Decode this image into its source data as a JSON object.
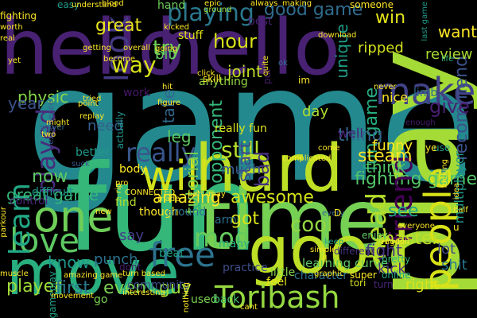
{
  "words": [
    {
      "text": "game",
      "color": "#23898e"
    },
    {
      "text": "fun",
      "color": "#35b779"
    },
    {
      "text": "hello",
      "color": "#482173"
    },
    {
      "text": "hello",
      "color": "#482173"
    },
    {
      "text": "play",
      "color": "#a5db36"
    },
    {
      "text": "time",
      "color": "#75d054"
    },
    {
      "text": "hard",
      "color": "#bddf26"
    },
    {
      "text": "move",
      "color": "#29af7f"
    },
    {
      "text": "good",
      "color": "#bddf26"
    },
    {
      "text": "will",
      "color": "#d2e21b"
    },
    {
      "text": "make",
      "color": "#414287"
    },
    {
      "text": "people",
      "color": "#d8e219"
    },
    {
      "text": "one",
      "color": "#6ece58"
    },
    {
      "text": "look",
      "color": "#443983"
    },
    {
      "text": "free",
      "color": "#2c738e"
    },
    {
      "text": "love",
      "color": "#5ec962"
    },
    {
      "text": "Toribash",
      "color": "#95d840"
    },
    {
      "text": "playing",
      "color": "#2a788e"
    },
    {
      "text": "good game",
      "color": "#2f6c8e"
    },
    {
      "text": "hour",
      "color": "#d8e219"
    },
    {
      "text": "learn",
      "color": "#22a785"
    },
    {
      "text": "played",
      "color": "#472d7b"
    },
    {
      "text": "mod",
      "color": "#65cb5e"
    },
    {
      "text": "really",
      "color": "#39568c"
    },
    {
      "text": "fighting game",
      "color": "#52c569"
    },
    {
      "text": "friend",
      "color": "#440154"
    },
    {
      "text": "head",
      "color": "#b5de2b"
    },
    {
      "text": "still",
      "color": "#b5de2b"
    },
    {
      "text": "fun game",
      "color": "#26ad81"
    },
    {
      "text": "great game",
      "color": "#35b779"
    },
    {
      "text": "recommend",
      "color": "#3b528b"
    },
    {
      "text": "amazing",
      "color": "#fde725"
    },
    {
      "text": "know",
      "color": "#1f988b"
    },
    {
      "text": "control",
      "color": "#482878"
    },
    {
      "text": "steam",
      "color": "#fde725"
    },
    {
      "text": "awesome",
      "color": "#d2e21b"
    },
    {
      "text": "cool",
      "color": "#93d741"
    },
    {
      "text": "great",
      "color": "#ece51b"
    },
    {
      "text": "physic",
      "color": "#86d549"
    },
    {
      "text": "opponent",
      "color": "#35b779"
    },
    {
      "text": "try",
      "color": "#6ece58"
    },
    {
      "text": "way",
      "color": "#d8e219"
    },
    {
      "text": "joint",
      "color": "#c2df23"
    },
    {
      "text": "give",
      "color": "#481f70"
    },
    {
      "text": "thing",
      "color": "#31688e"
    },
    {
      "text": "player",
      "color": "#a0da39"
    },
    {
      "text": "even",
      "color": "#7ad151"
    },
    {
      "text": "first",
      "color": "#2a788e"
    },
    {
      "text": "guy",
      "color": "#9bd93c"
    },
    {
      "text": "tutorial",
      "color": "#7ad151"
    },
    {
      "text": "start",
      "color": "#3e4989"
    },
    {
      "text": "bad",
      "color": "#46337e"
    },
    {
      "text": "got",
      "color": "#d8e219"
    },
    {
      "text": "see",
      "color": "#22a785"
    },
    {
      "text": "master",
      "color": "#bddf26"
    },
    {
      "text": "fight",
      "color": "#46327e"
    },
    {
      "text": "think",
      "color": "#52c569"
    },
    {
      "text": "year",
      "color": "#3b528b"
    },
    {
      "text": "learning curve",
      "color": "#5ec962"
    },
    {
      "text": "lot",
      "color": "#3e4989"
    },
    {
      "text": "day",
      "color": "#addc30"
    },
    {
      "text": "want",
      "color": "#fde725"
    },
    {
      "text": "review",
      "color": "#a8db34"
    },
    {
      "text": "win",
      "color": "#e5e419"
    },
    {
      "text": "ripped",
      "color": "#d0e11c"
    },
    {
      "text": "unique",
      "color": "#1f9e89"
    },
    {
      "text": "much",
      "color": "#365d8d"
    },
    {
      "text": "funny",
      "color": "#fde725"
    },
    {
      "text": "take",
      "color": "#31688e"
    },
    {
      "text": "need",
      "color": "#355f8d"
    },
    {
      "text": "now",
      "color": "#5ec962"
    },
    {
      "text": "leg",
      "color": "#5ec962"
    },
    {
      "text": "bit",
      "color": "#5ec962"
    },
    {
      "text": "say",
      "color": "#433e85"
    },
    {
      "text": "punch",
      "color": "#2c738e"
    },
    {
      "text": "beat",
      "color": "#1fa187"
    },
    {
      "text": "mod",
      "color": "#65cb5e"
    },
    {
      "text": "kick",
      "color": "#46327e"
    },
    {
      "text": "right",
      "color": "#dde318"
    },
    {
      "text": "shit",
      "color": "#2a788e"
    },
    {
      "text": "community",
      "color": "#3b528b"
    },
    {
      "text": "used",
      "color": "#7ad151"
    },
    {
      "text": "back",
      "color": "#4ac16d"
    },
    {
      "text": "difficult",
      "color": "#1f948c"
    },
    {
      "text": "tori",
      "color": "#d5e21a"
    },
    {
      "text": "online",
      "color": "#22a884"
    },
    {
      "text": "pretty",
      "color": "#35b779"
    },
    {
      "text": "character",
      "color": "#2c728e"
    },
    {
      "text": "really fun",
      "color": "#dde318"
    },
    {
      "text": "multiplayer",
      "color": "#1f9a8a"
    },
    {
      "text": "nice",
      "color": "#fde725"
    },
    {
      "text": "limb",
      "color": "#2f6c8e"
    },
    {
      "text": "enough",
      "color": "#481a6c"
    },
    {
      "text": "practice",
      "color": "#3d4e8a"
    },
    {
      "text": "well",
      "color": "#482475"
    },
    {
      "text": "best",
      "color": "#482173"
    },
    {
      "text": "hand",
      "color": "#6ece58"
    },
    {
      "text": "easy",
      "color": "#1e9b8a"
    },
    {
      "text": "fighting",
      "color": "#fde725"
    },
    {
      "text": "anything",
      "color": "#95d840"
    },
    {
      "text": "stuff",
      "color": "#e2e418"
    },
    {
      "text": "gameplay",
      "color": "#1fa188"
    },
    {
      "text": "muscle",
      "color": "#fde725"
    },
    {
      "text": "body",
      "color": "#fde725"
    },
    {
      "text": "work",
      "color": "#481769"
    },
    {
      "text": "real",
      "color": "#fde725"
    },
    {
      "text": "actually",
      "color": "#1f968b"
    },
    {
      "text": "someone",
      "color": "#fde725"
    },
    {
      "text": "feel",
      "color": "#e7e419"
    },
    {
      "text": "little",
      "color": "#86d549"
    },
    {
      "text": "many",
      "color": "#2ab07f"
    },
    {
      "text": "better",
      "color": "#1f9a8a"
    },
    {
      "text": "suck",
      "color": "#3b528b"
    },
    {
      "text": "server",
      "color": "#31688e"
    },
    {
      "text": "experience",
      "color": "#3a548c"
    },
    {
      "text": "arm",
      "color": "#2d708e"
    },
    {
      "text": "though",
      "color": "#fde725"
    },
    {
      "text": "go",
      "color": "#7ad151"
    },
    {
      "text": "use",
      "color": "#1f9f88"
    },
    {
      "text": "come",
      "color": "#fde725"
    },
    {
      "text": "find",
      "color": "#b5de2b"
    },
    {
      "text": "dont",
      "color": "#48186a"
    },
    {
      "text": "around",
      "color": "#2c728e"
    },
    {
      "text": "simple",
      "color": "#fde725"
    },
    {
      "text": "keep",
      "color": "#22a785"
    },
    {
      "text": "different",
      "color": "#46337e"
    },
    {
      "text": "every",
      "color": "#32648e"
    },
    {
      "text": "enjoy",
      "color": "#5ec962"
    },
    {
      "text": "turn",
      "color": "#482475"
    },
    {
      "text": "graphic",
      "color": "#fde725"
    },
    {
      "text": "super",
      "color": "#fde725"
    },
    {
      "text": "skill",
      "color": "#fde725"
    },
    {
      "text": "ok",
      "color": "#2d708e"
    },
    {
      "text": "im",
      "color": "#fde725"
    },
    {
      "text": "put",
      "color": "#481b6d"
    },
    {
      "text": "epic",
      "color": "#fde725"
    },
    {
      "text": "blood",
      "color": "#fde725"
    },
    {
      "text": "ground",
      "color": "#a0da39"
    },
    {
      "text": "always",
      "color": "#fde725"
    },
    {
      "text": "making",
      "color": "#fde725"
    },
    {
      "text": "download",
      "color": "#fde725"
    },
    {
      "text": "last game",
      "color": "#1f9a8a"
    },
    {
      "text": "life",
      "color": "#35b779"
    },
    {
      "text": "understand",
      "color": "#fde725"
    },
    {
      "text": "worth",
      "color": "#fde725"
    },
    {
      "text": "kicked",
      "color": "#fde725"
    },
    {
      "text": "getting",
      "color": "#fde725"
    },
    {
      "text": "overall",
      "color": "#fde725"
    },
    {
      "text": "going",
      "color": "#fde725"
    },
    {
      "text": "become",
      "color": "#fde725"
    },
    {
      "text": "replay",
      "color": "#fde725"
    },
    {
      "text": "point",
      "color": "#fde725"
    },
    {
      "text": "tried",
      "color": "#fde725"
    },
    {
      "text": "hit",
      "color": "#fde725"
    },
    {
      "text": "figure",
      "color": "#fde725"
    },
    {
      "text": "might",
      "color": "#fde725"
    },
    {
      "text": "two",
      "color": "#fde725"
    },
    {
      "text": "pro",
      "color": "#fde725"
    },
    {
      "text": "CONNECTED",
      "color": "#fde725"
    },
    {
      "text": "made",
      "color": "#fde725"
    },
    {
      "text": "part",
      "color": "#fde725"
    },
    {
      "text": "may",
      "color": "#fde725"
    },
    {
      "text": "rip",
      "color": "#fde725"
    },
    {
      "text": "amazing game",
      "color": "#fde725"
    },
    {
      "text": "turn based",
      "color": "#fde725"
    },
    {
      "text": "nothing",
      "color": "#fde725"
    },
    {
      "text": "movement",
      "color": "#fde725"
    },
    {
      "text": "interesting",
      "color": "#fde725"
    },
    {
      "text": "cant",
      "color": "#fde725"
    },
    {
      "text": "ragdoll",
      "color": "#fde725"
    },
    {
      "text": "fucking",
      "color": "#fde725"
    },
    {
      "text": "complicated",
      "color": "#fde725"
    },
    {
      "text": "never",
      "color": "#fde725"
    },
    {
      "text": "everyone",
      "color": "#fde725"
    },
    {
      "text": "half",
      "color": "#fde725"
    },
    {
      "text": "idea",
      "color": "#fde725"
    },
    {
      "text": "yet",
      "color": "#fde725"
    },
    {
      "text": "quite",
      "color": "#fde725"
    },
    {
      "text": "click",
      "color": "#fde725"
    },
    {
      "text": "parkour",
      "color": "#fde725"
    },
    {
      "text": "new",
      "color": "#fde725"
    },
    {
      "text": "ye",
      "color": "#fde725"
    },
    {
      "text": "ll",
      "color": "#fde725"
    },
    {
      "text": "u",
      "color": "#fde725"
    },
    {
      "text": "D",
      "color": "#fde725"
    }
  ]
}
